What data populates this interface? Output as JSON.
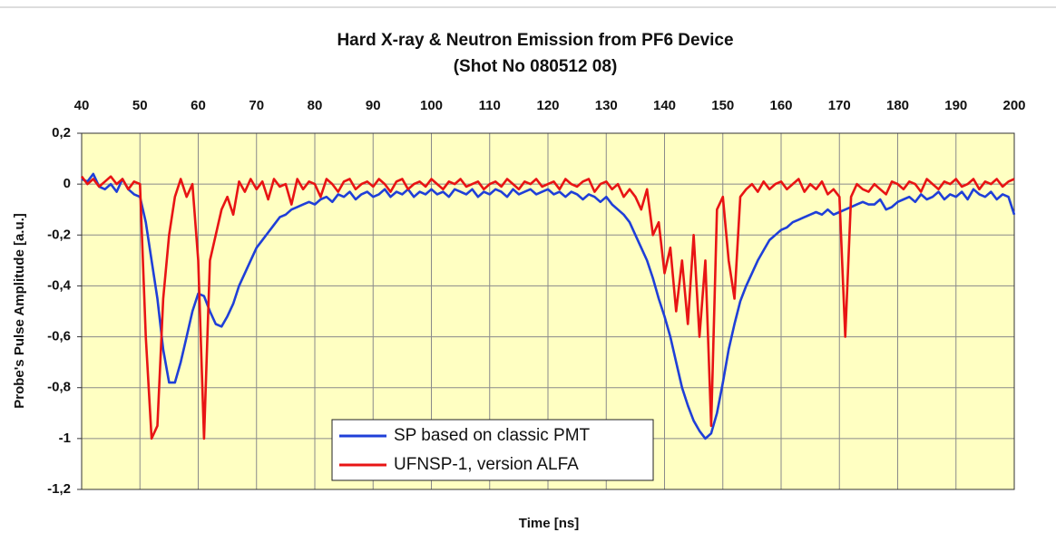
{
  "chart_data": {
    "type": "line",
    "title": "Hard X-ray & Neutron Emission from PF6 Device",
    "subtitle": "(Shot No 080512 08)",
    "x_label": "Time [ns]",
    "y_label": "Probe's Pulse Amplitude [a.u.]",
    "xlim": [
      40,
      200
    ],
    "xticks": [
      40,
      50,
      60,
      70,
      80,
      90,
      100,
      110,
      120,
      130,
      140,
      150,
      160,
      170,
      180,
      190,
      200
    ],
    "ylim": [
      -1.2,
      0.2
    ],
    "yticks": [
      {
        "value": 0.2,
        "label": "0,2"
      },
      0,
      {
        "value": -0.2,
        "label": "-0,2"
      },
      {
        "value": -0.4,
        "label": "-0,4"
      },
      {
        "value": -0.6,
        "label": "-0,6"
      },
      {
        "value": -0.8,
        "label": "-0,8"
      },
      -1,
      {
        "value": -1.2,
        "label": "-1,2"
      }
    ],
    "grid": true,
    "legend": "lower center",
    "x": [
      40,
      41,
      42,
      43,
      44,
      45,
      46,
      47,
      48,
      49,
      50,
      51,
      52,
      53,
      54,
      55,
      56,
      57,
      58,
      59,
      60,
      61,
      62,
      63,
      64,
      65,
      66,
      67,
      68,
      69,
      70,
      71,
      72,
      73,
      74,
      75,
      76,
      77,
      78,
      79,
      80,
      81,
      82,
      83,
      84,
      85,
      86,
      87,
      88,
      89,
      90,
      91,
      92,
      93,
      94,
      95,
      96,
      97,
      98,
      99,
      100,
      101,
      102,
      103,
      104,
      105,
      106,
      107,
      108,
      109,
      110,
      111,
      112,
      113,
      114,
      115,
      116,
      117,
      118,
      119,
      120,
      121,
      122,
      123,
      124,
      125,
      126,
      127,
      128,
      129,
      130,
      131,
      132,
      133,
      134,
      135,
      136,
      137,
      138,
      139,
      140,
      141,
      142,
      143,
      144,
      145,
      146,
      147,
      148,
      149,
      150,
      151,
      152,
      153,
      154,
      155,
      156,
      157,
      158,
      159,
      160,
      161,
      162,
      163,
      164,
      165,
      166,
      167,
      168,
      169,
      170,
      171,
      172,
      173,
      174,
      175,
      176,
      177,
      178,
      179,
      180,
      181,
      182,
      183,
      184,
      185,
      186,
      187,
      188,
      189,
      190,
      191,
      192,
      193,
      194,
      195,
      196,
      197,
      198,
      199,
      200
    ],
    "series": [
      {
        "name": "SP based on classic PMT",
        "color": "#1f3fd8",
        "values": [
          0.02,
          0.01,
          0.04,
          -0.01,
          -0.02,
          0.0,
          -0.03,
          0.02,
          -0.02,
          -0.04,
          -0.05,
          -0.15,
          -0.3,
          -0.45,
          -0.65,
          -0.78,
          -0.78,
          -0.7,
          -0.6,
          -0.5,
          -0.43,
          -0.44,
          -0.5,
          -0.55,
          -0.56,
          -0.52,
          -0.47,
          -0.4,
          -0.35,
          -0.3,
          -0.25,
          -0.22,
          -0.19,
          -0.16,
          -0.13,
          -0.12,
          -0.1,
          -0.09,
          -0.08,
          -0.07,
          -0.08,
          -0.06,
          -0.05,
          -0.07,
          -0.04,
          -0.05,
          -0.03,
          -0.06,
          -0.04,
          -0.03,
          -0.05,
          -0.04,
          -0.02,
          -0.05,
          -0.03,
          -0.04,
          -0.02,
          -0.05,
          -0.03,
          -0.04,
          -0.02,
          -0.04,
          -0.03,
          -0.05,
          -0.02,
          -0.03,
          -0.04,
          -0.02,
          -0.05,
          -0.03,
          -0.04,
          -0.02,
          -0.03,
          -0.05,
          -0.02,
          -0.04,
          -0.03,
          -0.02,
          -0.04,
          -0.03,
          -0.02,
          -0.04,
          -0.03,
          -0.05,
          -0.03,
          -0.04,
          -0.06,
          -0.04,
          -0.05,
          -0.07,
          -0.05,
          -0.08,
          -0.1,
          -0.12,
          -0.15,
          -0.2,
          -0.25,
          -0.3,
          -0.37,
          -0.45,
          -0.52,
          -0.6,
          -0.7,
          -0.8,
          -0.87,
          -0.93,
          -0.97,
          -1,
          -0.98,
          -0.9,
          -0.78,
          -0.65,
          -0.55,
          -0.46,
          -0.4,
          -0.35,
          -0.3,
          -0.26,
          -0.22,
          -0.2,
          -0.18,
          -0.17,
          -0.15,
          -0.14,
          -0.13,
          -0.12,
          -0.11,
          -0.12,
          -0.1,
          -0.12,
          -0.11,
          -0.1,
          -0.09,
          -0.08,
          -0.07,
          -0.08,
          -0.08,
          -0.06,
          -0.1,
          -0.09,
          -0.07,
          -0.06,
          -0.05,
          -0.07,
          -0.04,
          -0.06,
          -0.05,
          -0.03,
          -0.06,
          -0.04,
          -0.05,
          -0.03,
          -0.06,
          -0.02,
          -0.04,
          -0.05,
          -0.03,
          -0.06,
          -0.04,
          -0.05,
          -0.12
        ]
      },
      {
        "name": "UFNSP-1, version ALFA",
        "color": "#e81414",
        "values": [
          0.03,
          0.0,
          0.02,
          -0.01,
          0.01,
          0.03,
          0.0,
          0.02,
          -0.02,
          0.01,
          0.0,
          -0.6,
          -1,
          -0.95,
          -0.45,
          -0.2,
          -0.05,
          0.02,
          -0.05,
          0.0,
          -0.3,
          -1,
          -0.3,
          -0.2,
          -0.1,
          -0.05,
          -0.12,
          0.01,
          -0.03,
          0.02,
          -0.02,
          0.01,
          -0.06,
          0.02,
          -0.01,
          0.0,
          -0.08,
          0.02,
          -0.02,
          0.01,
          0.0,
          -0.05,
          0.02,
          0.0,
          -0.03,
          0.01,
          0.02,
          -0.02,
          0.0,
          0.01,
          -0.01,
          0.02,
          0.0,
          -0.03,
          0.01,
          0.02,
          -0.02,
          0.0,
          0.01,
          -0.01,
          0.02,
          0.0,
          -0.02,
          0.01,
          0.0,
          0.02,
          -0.01,
          0.0,
          0.01,
          -0.02,
          0.0,
          0.01,
          -0.01,
          0.02,
          0.0,
          -0.02,
          0.01,
          0.0,
          0.02,
          -0.01,
          0.0,
          0.01,
          -0.02,
          0.02,
          0.0,
          -0.01,
          0.01,
          0.02,
          -0.03,
          0.0,
          0.01,
          -0.02,
          0.0,
          -0.05,
          -0.02,
          -0.05,
          -0.1,
          -0.02,
          -0.2,
          -0.15,
          -0.35,
          -0.25,
          -0.5,
          -0.3,
          -0.55,
          -0.2,
          -0.6,
          -0.3,
          -0.95,
          -0.1,
          -0.05,
          -0.3,
          -0.45,
          -0.05,
          -0.02,
          0.0,
          -0.03,
          0.01,
          -0.02,
          0.0,
          0.01,
          -0.02,
          0.0,
          0.02,
          -0.03,
          0.0,
          -0.02,
          0.01,
          -0.04,
          -0.02,
          -0.05,
          -0.6,
          -0.05,
          0.0,
          -0.02,
          -0.03,
          0.0,
          -0.02,
          -0.04,
          0.01,
          0.0,
          -0.02,
          0.01,
          0.0,
          -0.03,
          0.02,
          0.0,
          -0.02,
          0.01,
          0.0,
          0.02,
          -0.01,
          0.0,
          0.02,
          -0.02,
          0.01,
          0.0,
          0.02,
          -0.01,
          0.01,
          0.02
        ]
      }
    ]
  }
}
